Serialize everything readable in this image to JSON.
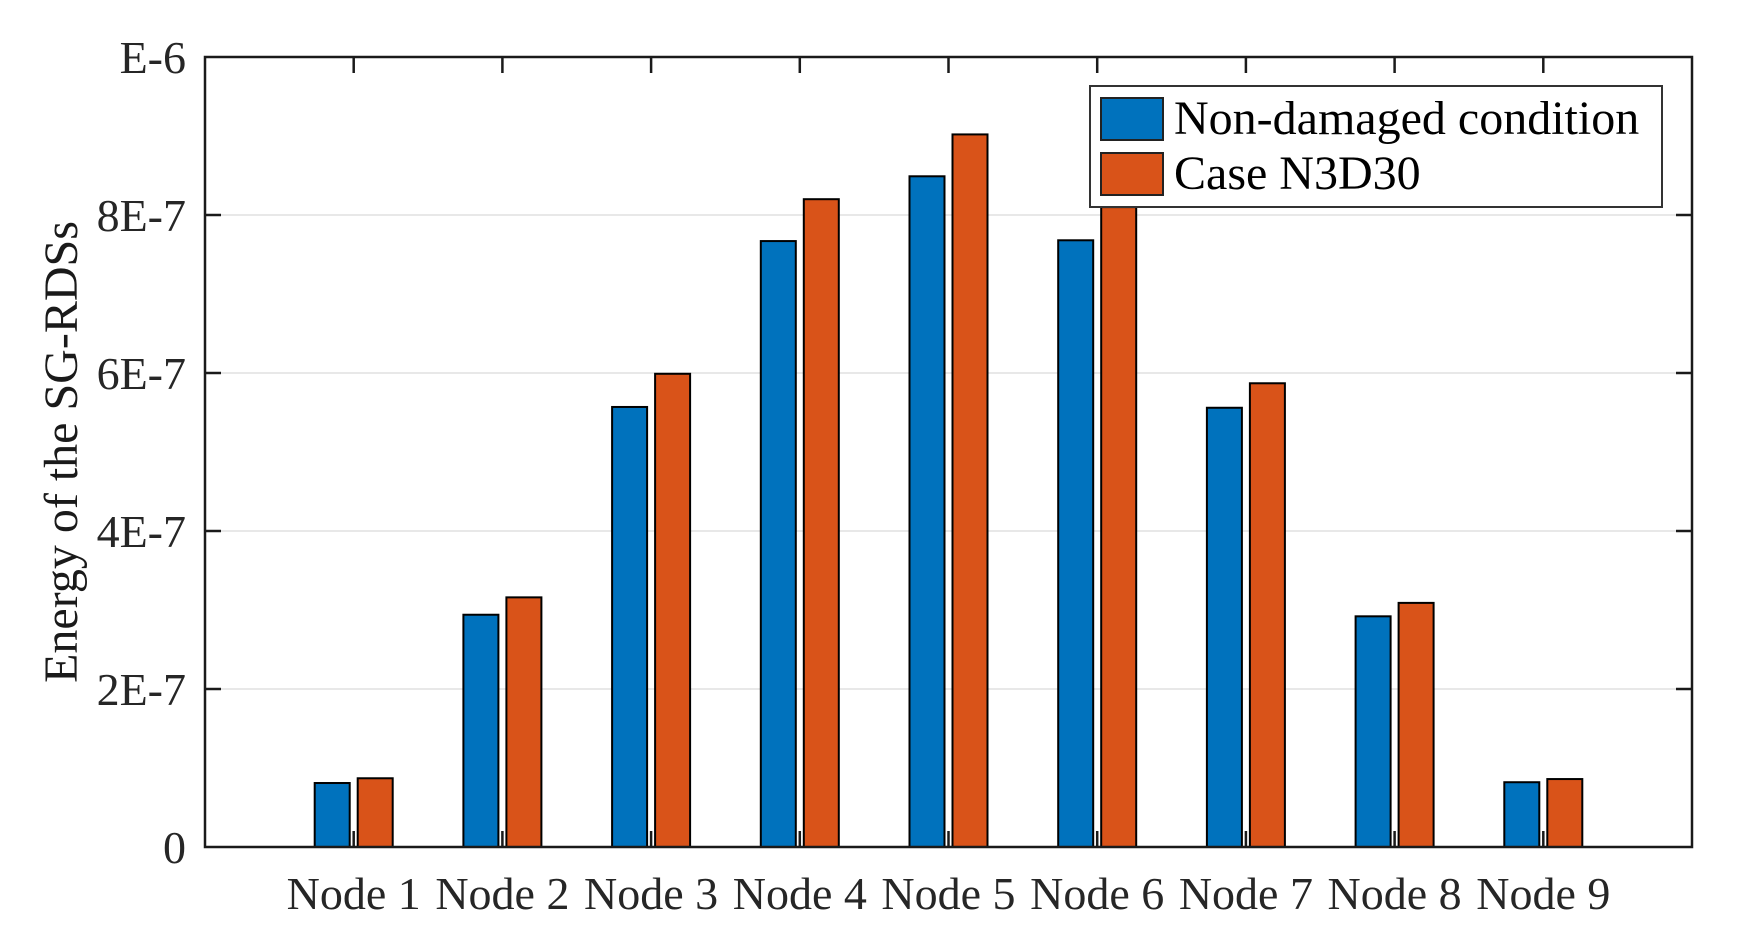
{
  "chart_data": {
    "type": "bar",
    "title": "",
    "xlabel": "",
    "ylabel": "Energy of the SG-RDSs",
    "categories": [
      "Node 1",
      "Node 2",
      "Node 3",
      "Node 4",
      "Node 5",
      "Node 6",
      "Node 7",
      "Node 8",
      "Node 9"
    ],
    "series": [
      {
        "name": "Non-damaged condition",
        "color": "#0072BD",
        "values": [
          8.1e-08,
          2.94e-07,
          5.57e-07,
          7.67e-07,
          8.49e-07,
          7.68e-07,
          5.56e-07,
          2.92e-07,
          8.2e-08
        ]
      },
      {
        "name": "Case N3D30",
        "color": "#D95319",
        "values": [
          8.7e-08,
          3.16e-07,
          5.99e-07,
          8.2e-07,
          9.02e-07,
          8.1e-07,
          5.87e-07,
          3.09e-07,
          8.6e-08
        ]
      }
    ],
    "ylim": [
      0,
      1e-06
    ],
    "yticks": {
      "values": [
        0,
        2e-07,
        4e-07,
        6e-07,
        8e-07,
        1e-06
      ],
      "labels": [
        "0",
        "2E-7",
        "4E-7",
        "6E-7",
        "8E-7",
        "E-6"
      ]
    },
    "grid": "horizontal",
    "legend_position": "top-right"
  }
}
